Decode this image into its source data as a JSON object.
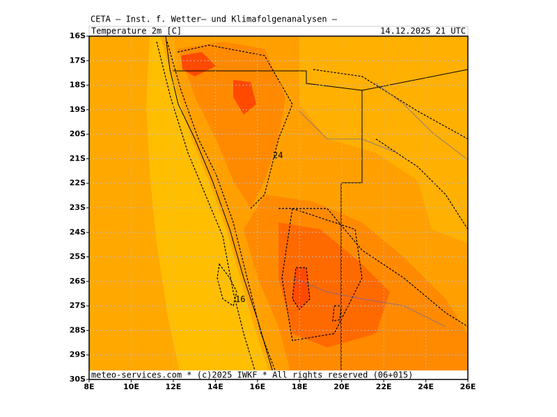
{
  "header": {
    "title": "CETA – Inst. f. Wetter– und Klimafolgenanalysen –",
    "field": "Temperature 2m [C]",
    "time": "14.12.2025 21 UTC"
  },
  "axes": {
    "lat": [
      "16S",
      "17S",
      "18S",
      "19S",
      "20S",
      "21S",
      "22S",
      "23S",
      "24S",
      "25S",
      "26S",
      "27S",
      "28S",
      "29S",
      "30S"
    ],
    "lon": [
      "8E",
      "10E",
      "12E",
      "14E",
      "16E",
      "18E",
      "20E",
      "22E",
      "24E",
      "26E"
    ]
  },
  "contour_labels": [
    "24",
    "16"
  ],
  "footer": "meteo-services.com * (c)2025 IWKF * All rights reserved (06+015)"
}
